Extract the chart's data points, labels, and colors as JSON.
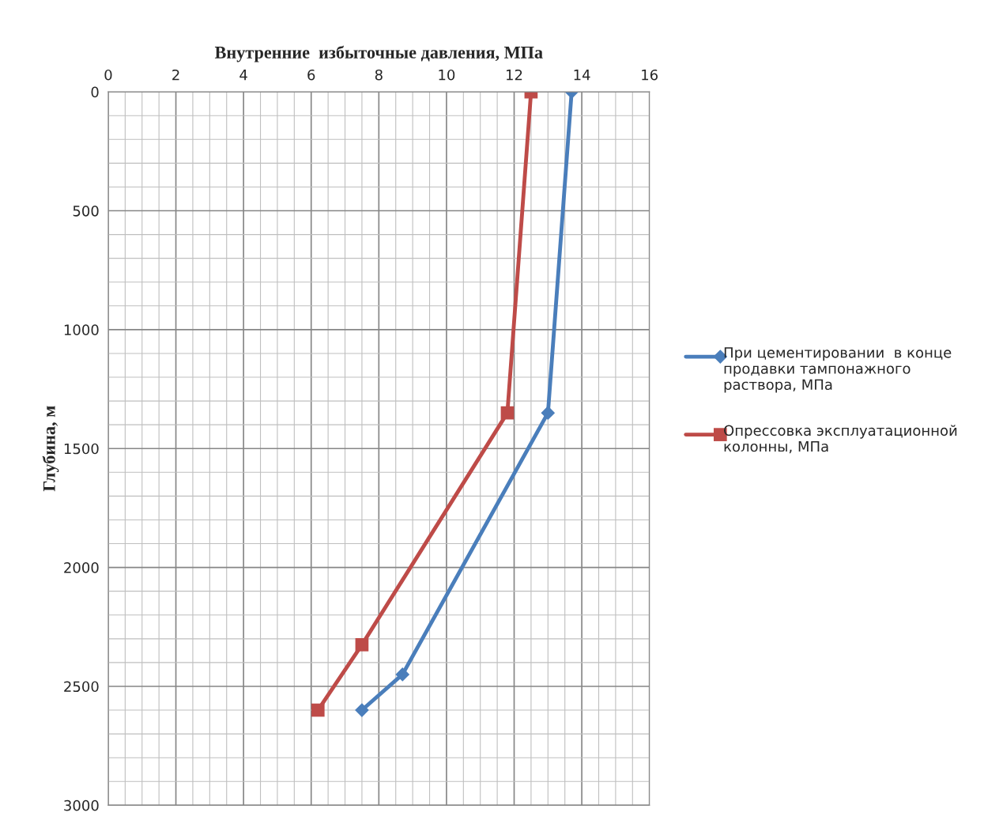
{
  "chart_data": {
    "type": "line",
    "xlabel": "Внутренние  избыточные давления, МПа",
    "ylabel": "Глубина, м",
    "xlim": [
      0,
      16
    ],
    "xticks": [
      0,
      2,
      4,
      6,
      8,
      10,
      12,
      14,
      16
    ],
    "ylim": [
      3000,
      0
    ],
    "yticks": [
      0,
      500,
      1000,
      1500,
      2000,
      2500,
      3000
    ],
    "grid": true,
    "legend": "right",
    "series": [
      {
        "name": "При цементировании  в конце продавки тампонажного раствора, МПа",
        "color": "#4a7ebb",
        "marker": "diamond",
        "x": [
          13.7,
          13.0,
          8.7,
          7.5
        ],
        "values": [
          0,
          1350,
          2450,
          2600
        ]
      },
      {
        "name": "Опрессовка эксплуатационной колонны, МПа",
        "color": "#be4b48",
        "marker": "square",
        "x": [
          12.5,
          11.8,
          7.5,
          6.2
        ],
        "values": [
          0,
          1350,
          2325,
          2600
        ]
      }
    ]
  }
}
